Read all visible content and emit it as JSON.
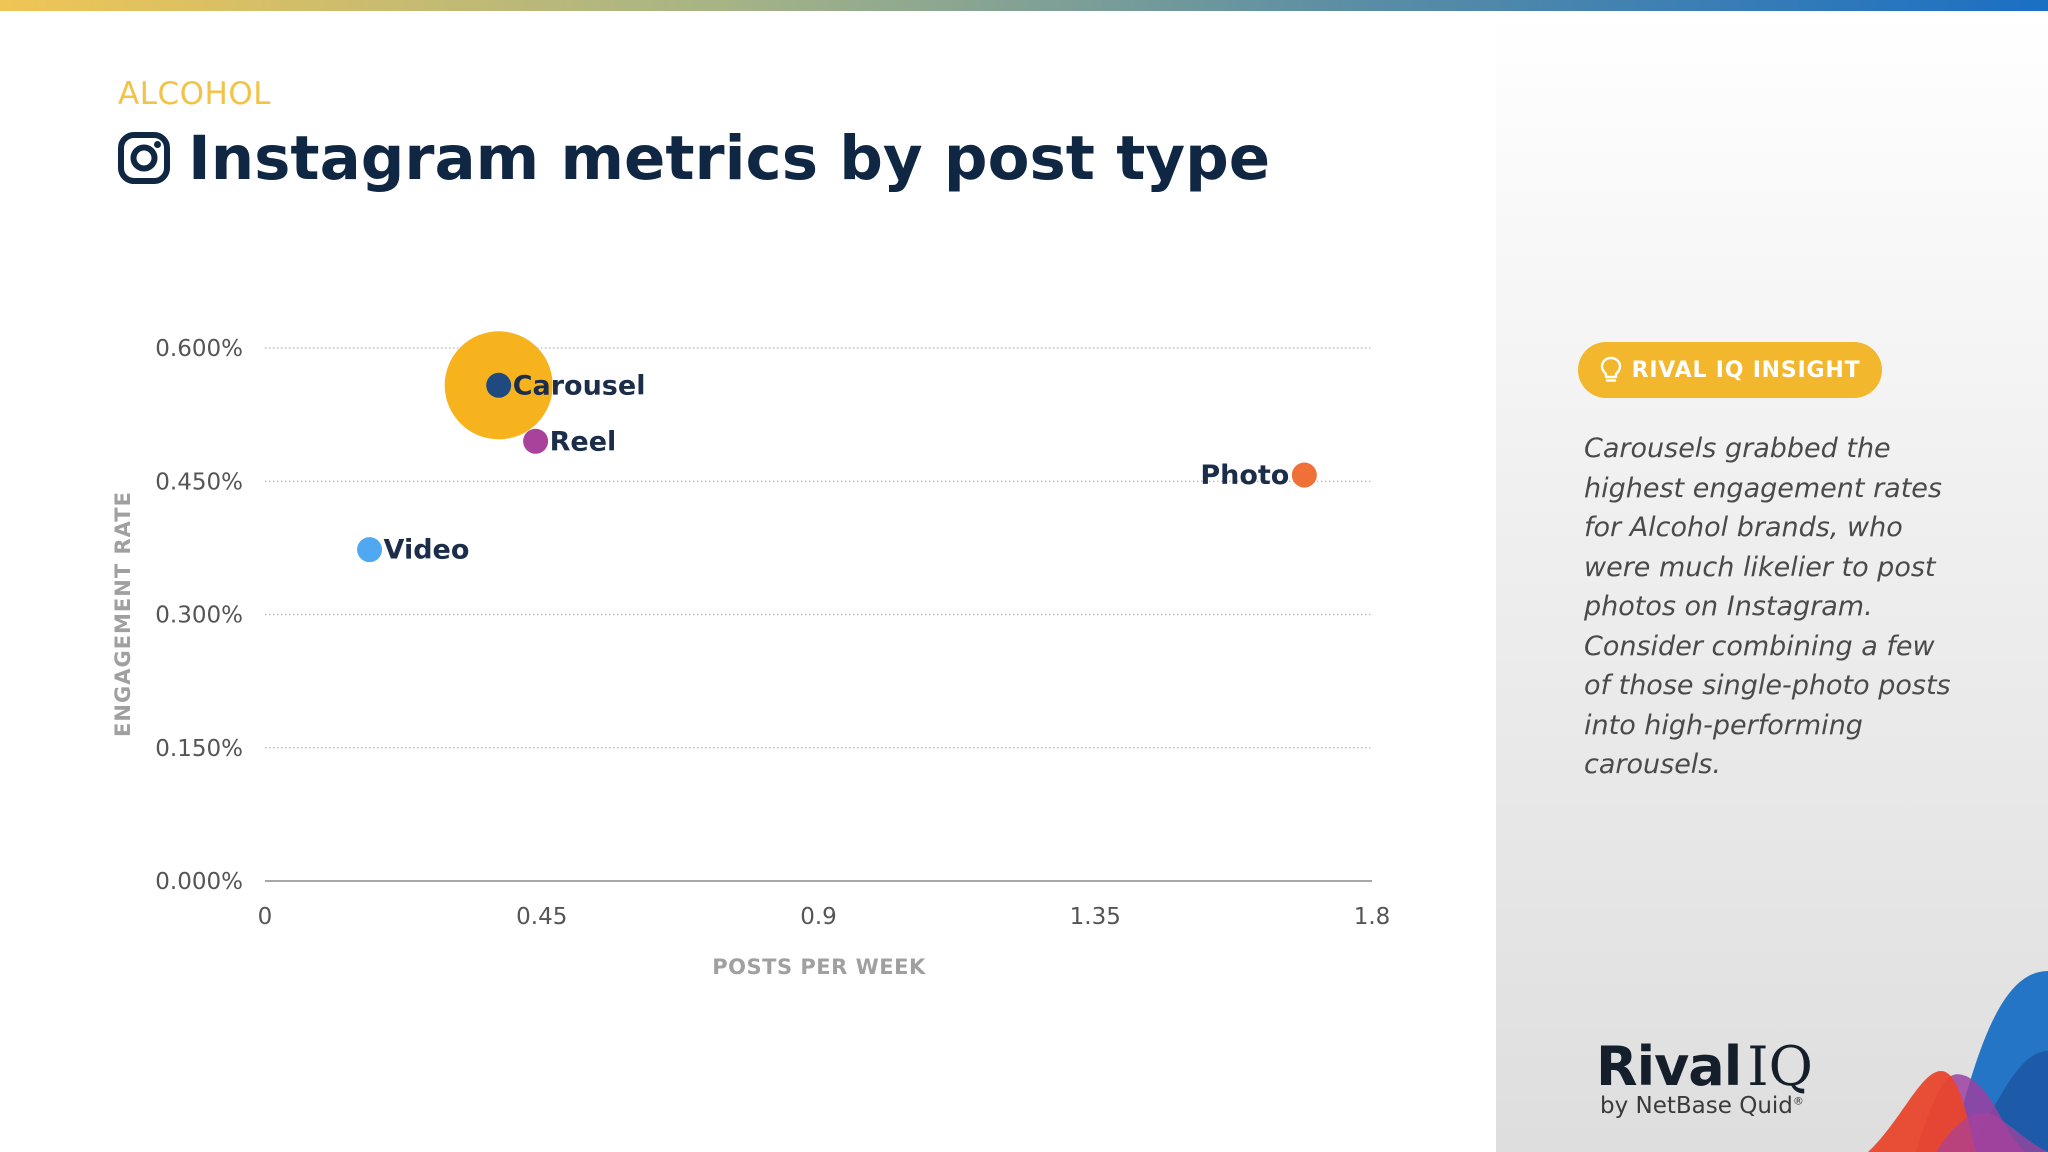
{
  "header": {
    "category": "ALCOHOL",
    "title": "Instagram metrics by post type"
  },
  "colors": {
    "title": "#0f2743",
    "category": "#f2c249",
    "accent": "#f2b72d",
    "bubble": "#f7b31e",
    "axis_label": "#a0a0a0"
  },
  "chart_data": {
    "type": "scatter",
    "title": "Instagram metrics by post type",
    "xlabel": "POSTS PER WEEK",
    "ylabel": "ENGAGEMENT RATE",
    "xlim": [
      0,
      1.8
    ],
    "ylim": [
      0,
      0.6
    ],
    "x_ticks": [
      "0",
      "0.45",
      "0.9",
      "1.35",
      "1.8"
    ],
    "y_ticks": [
      "0.000%",
      "0.150%",
      "0.300%",
      "0.450%",
      "0.600%"
    ],
    "grid": true,
    "points": [
      {
        "label": "Carousel",
        "x": 0.38,
        "y": 0.558,
        "color": "#1e4a80",
        "highlight_bubble": true,
        "label_side": "right"
      },
      {
        "label": "Reel",
        "x": 0.44,
        "y": 0.495,
        "color": "#a8429b",
        "label_side": "right"
      },
      {
        "label": "Photo",
        "x": 1.69,
        "y": 0.457,
        "color": "#f07137",
        "label_side": "left"
      },
      {
        "label": "Video",
        "x": 0.17,
        "y": 0.373,
        "color": "#50a8f0",
        "label_side": "right"
      }
    ]
  },
  "insight": {
    "badge_label": "RIVAL IQ INSIGHT",
    "badge_icon": "lightbulb-icon",
    "text": "Carousels grabbed the highest engagement rates for Alcohol brands, who were much likelier to post photos on Instagram. Consider combining a few of those single-photo posts into high-performing carousels."
  },
  "logo": {
    "rival": "Rival",
    "iq": "IQ",
    "sub": "by NetBase Quid",
    "reg": "®"
  }
}
